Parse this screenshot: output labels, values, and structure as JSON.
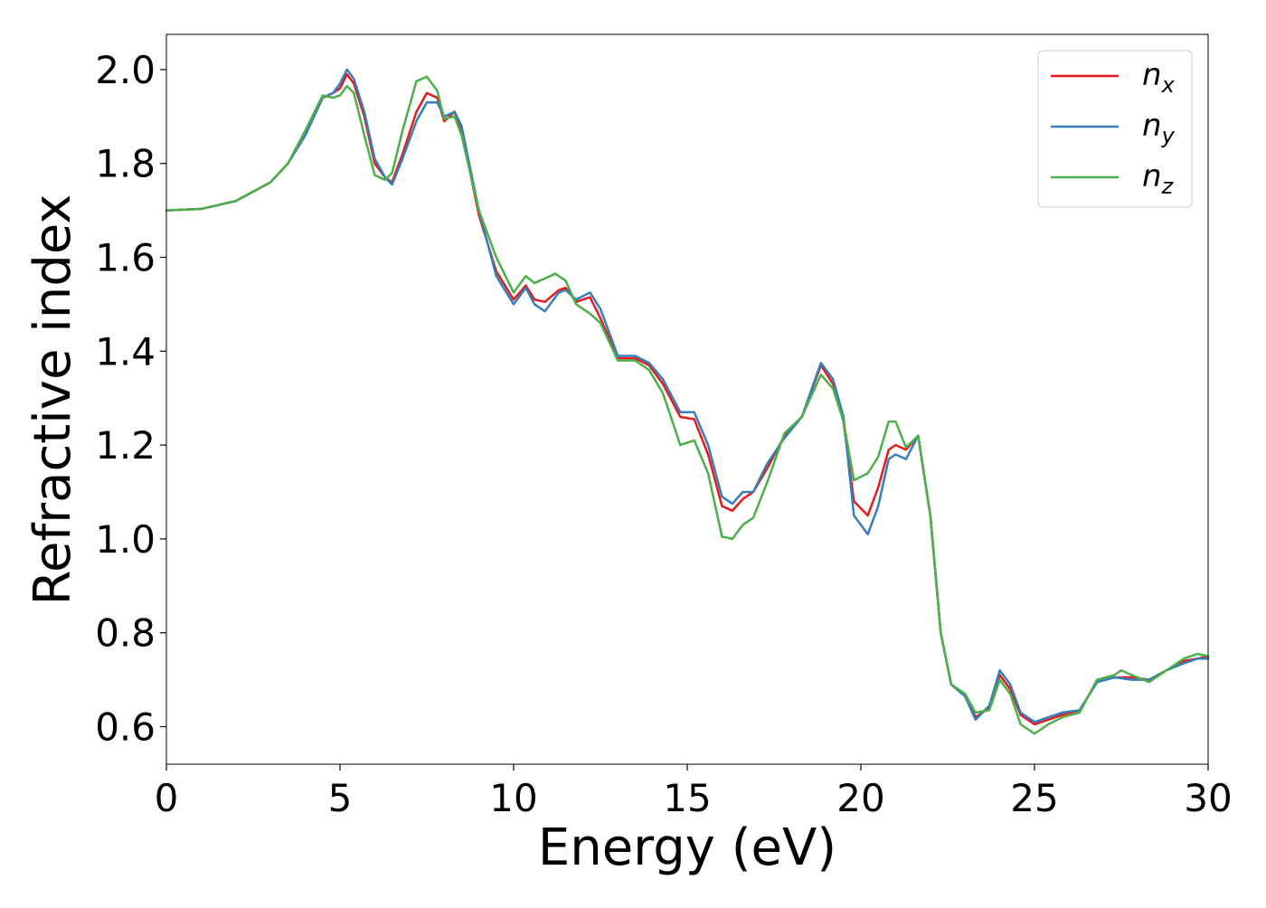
{
  "chart_data": {
    "type": "line",
    "title": "",
    "xlabel": "Energy (eV)",
    "ylabel": "Refractive index",
    "xlim": [
      0,
      30
    ],
    "ylim": [
      0.52,
      2.075
    ],
    "xticks": [
      0,
      5,
      10,
      15,
      20,
      25,
      30
    ],
    "yticks": [
      0.6,
      0.8,
      1.0,
      1.2,
      1.4,
      1.6,
      1.8,
      2.0
    ],
    "xtick_labels": [
      "0",
      "5",
      "10",
      "15",
      "20",
      "25",
      "30"
    ],
    "ytick_labels": [
      "0.6",
      "0.8",
      "1.0",
      "1.2",
      "1.4",
      "1.6",
      "1.8",
      "2.0"
    ],
    "grid": false,
    "legend_position": "top-right",
    "series": [
      {
        "name": "n_x",
        "legend_base": "n",
        "legend_sub": "x",
        "color": "#e41a1c",
        "points": [
          [
            0,
            1.7
          ],
          [
            1,
            1.703
          ],
          [
            2,
            1.72
          ],
          [
            3,
            1.76
          ],
          [
            3.5,
            1.8
          ],
          [
            4,
            1.86
          ],
          [
            4.5,
            1.94
          ],
          [
            4.8,
            1.95
          ],
          [
            5.0,
            1.96
          ],
          [
            5.2,
            1.99
          ],
          [
            5.4,
            1.97
          ],
          [
            5.7,
            1.9
          ],
          [
            6.0,
            1.8
          ],
          [
            6.3,
            1.77
          ],
          [
            6.5,
            1.76
          ],
          [
            6.8,
            1.82
          ],
          [
            7.2,
            1.91
          ],
          [
            7.5,
            1.95
          ],
          [
            7.8,
            1.94
          ],
          [
            8.0,
            1.89
          ],
          [
            8.3,
            1.91
          ],
          [
            8.5,
            1.87
          ],
          [
            9.0,
            1.69
          ],
          [
            9.5,
            1.57
          ],
          [
            10.0,
            1.51
          ],
          [
            10.35,
            1.54
          ],
          [
            10.6,
            1.51
          ],
          [
            10.9,
            1.505
          ],
          [
            11.3,
            1.53
          ],
          [
            11.5,
            1.535
          ],
          [
            11.8,
            1.505
          ],
          [
            12.2,
            1.515
          ],
          [
            12.5,
            1.47
          ],
          [
            13.0,
            1.385
          ],
          [
            13.5,
            1.385
          ],
          [
            13.9,
            1.37
          ],
          [
            14.3,
            1.33
          ],
          [
            14.8,
            1.26
          ],
          [
            15.2,
            1.255
          ],
          [
            15.6,
            1.18
          ],
          [
            16.0,
            1.07
          ],
          [
            16.3,
            1.06
          ],
          [
            16.6,
            1.085
          ],
          [
            16.9,
            1.1
          ],
          [
            17.3,
            1.15
          ],
          [
            17.8,
            1.22
          ],
          [
            18.3,
            1.26
          ],
          [
            18.85,
            1.37
          ],
          [
            19.2,
            1.33
          ],
          [
            19.5,
            1.25
          ],
          [
            19.8,
            1.08
          ],
          [
            20.2,
            1.05
          ],
          [
            20.5,
            1.11
          ],
          [
            20.8,
            1.19
          ],
          [
            21.0,
            1.2
          ],
          [
            21.3,
            1.19
          ],
          [
            21.65,
            1.22
          ],
          [
            22.0,
            1.05
          ],
          [
            22.3,
            0.8
          ],
          [
            22.6,
            0.69
          ],
          [
            23.0,
            0.665
          ],
          [
            23.3,
            0.62
          ],
          [
            23.7,
            0.64
          ],
          [
            24.0,
            0.71
          ],
          [
            24.3,
            0.68
          ],
          [
            24.6,
            0.625
          ],
          [
            25.0,
            0.605
          ],
          [
            25.4,
            0.615
          ],
          [
            25.8,
            0.625
          ],
          [
            26.3,
            0.635
          ],
          [
            26.8,
            0.695
          ],
          [
            27.3,
            0.705
          ],
          [
            27.8,
            0.705
          ],
          [
            28.3,
            0.7
          ],
          [
            28.8,
            0.72
          ],
          [
            29.3,
            0.74
          ],
          [
            29.7,
            0.745
          ],
          [
            30.0,
            0.75
          ]
        ]
      },
      {
        "name": "n_y",
        "legend_base": "n",
        "legend_sub": "y",
        "color": "#377eb8",
        "points": [
          [
            0,
            1.7
          ],
          [
            1,
            1.703
          ],
          [
            2,
            1.72
          ],
          [
            3,
            1.76
          ],
          [
            3.5,
            1.8
          ],
          [
            4,
            1.86
          ],
          [
            4.5,
            1.94
          ],
          [
            4.8,
            1.95
          ],
          [
            5.0,
            1.97
          ],
          [
            5.2,
            2.0
          ],
          [
            5.4,
            1.98
          ],
          [
            5.7,
            1.91
          ],
          [
            6.0,
            1.81
          ],
          [
            6.3,
            1.77
          ],
          [
            6.5,
            1.755
          ],
          [
            6.8,
            1.81
          ],
          [
            7.2,
            1.89
          ],
          [
            7.5,
            1.93
          ],
          [
            7.8,
            1.93
          ],
          [
            8.0,
            1.9
          ],
          [
            8.3,
            1.91
          ],
          [
            8.5,
            1.88
          ],
          [
            9.0,
            1.7
          ],
          [
            9.5,
            1.56
          ],
          [
            10.0,
            1.5
          ],
          [
            10.35,
            1.535
          ],
          [
            10.6,
            1.5
          ],
          [
            10.9,
            1.485
          ],
          [
            11.3,
            1.525
          ],
          [
            11.5,
            1.53
          ],
          [
            11.8,
            1.51
          ],
          [
            12.2,
            1.525
          ],
          [
            12.5,
            1.49
          ],
          [
            13.0,
            1.39
          ],
          [
            13.5,
            1.39
          ],
          [
            13.9,
            1.375
          ],
          [
            14.3,
            1.34
          ],
          [
            14.8,
            1.27
          ],
          [
            15.2,
            1.27
          ],
          [
            15.6,
            1.2
          ],
          [
            16.0,
            1.09
          ],
          [
            16.3,
            1.075
          ],
          [
            16.6,
            1.1
          ],
          [
            16.9,
            1.1
          ],
          [
            17.3,
            1.16
          ],
          [
            17.8,
            1.215
          ],
          [
            18.3,
            1.26
          ],
          [
            18.85,
            1.375
          ],
          [
            19.2,
            1.34
          ],
          [
            19.5,
            1.26
          ],
          [
            19.8,
            1.05
          ],
          [
            20.2,
            1.01
          ],
          [
            20.5,
            1.07
          ],
          [
            20.8,
            1.17
          ],
          [
            21.0,
            1.18
          ],
          [
            21.3,
            1.17
          ],
          [
            21.65,
            1.22
          ],
          [
            22.0,
            1.05
          ],
          [
            22.3,
            0.8
          ],
          [
            22.6,
            0.69
          ],
          [
            23.0,
            0.665
          ],
          [
            23.3,
            0.615
          ],
          [
            23.7,
            0.645
          ],
          [
            24.0,
            0.72
          ],
          [
            24.3,
            0.69
          ],
          [
            24.6,
            0.63
          ],
          [
            25.0,
            0.61
          ],
          [
            25.4,
            0.62
          ],
          [
            25.8,
            0.63
          ],
          [
            26.3,
            0.635
          ],
          [
            26.8,
            0.695
          ],
          [
            27.3,
            0.705
          ],
          [
            27.8,
            0.7
          ],
          [
            28.3,
            0.7
          ],
          [
            28.8,
            0.72
          ],
          [
            29.3,
            0.735
          ],
          [
            29.7,
            0.745
          ],
          [
            30.0,
            0.745
          ]
        ]
      },
      {
        "name": "n_z",
        "legend_base": "n",
        "legend_sub": "z",
        "color": "#4daf4a",
        "points": [
          [
            0,
            1.7
          ],
          [
            1,
            1.703
          ],
          [
            2,
            1.72
          ],
          [
            3,
            1.76
          ],
          [
            3.5,
            1.8
          ],
          [
            4,
            1.87
          ],
          [
            4.5,
            1.945
          ],
          [
            4.8,
            1.94
          ],
          [
            5.0,
            1.945
          ],
          [
            5.2,
            1.965
          ],
          [
            5.4,
            1.95
          ],
          [
            5.7,
            1.86
          ],
          [
            6.0,
            1.775
          ],
          [
            6.3,
            1.765
          ],
          [
            6.5,
            1.78
          ],
          [
            6.8,
            1.87
          ],
          [
            7.2,
            1.975
          ],
          [
            7.5,
            1.985
          ],
          [
            7.8,
            1.955
          ],
          [
            8.0,
            1.895
          ],
          [
            8.3,
            1.9
          ],
          [
            8.5,
            1.86
          ],
          [
            9.0,
            1.7
          ],
          [
            9.5,
            1.6
          ],
          [
            10.0,
            1.525
          ],
          [
            10.35,
            1.56
          ],
          [
            10.6,
            1.545
          ],
          [
            10.9,
            1.555
          ],
          [
            11.2,
            1.565
          ],
          [
            11.5,
            1.55
          ],
          [
            11.8,
            1.5
          ],
          [
            12.2,
            1.48
          ],
          [
            12.5,
            1.46
          ],
          [
            13.0,
            1.38
          ],
          [
            13.5,
            1.38
          ],
          [
            13.9,
            1.36
          ],
          [
            14.3,
            1.31
          ],
          [
            14.8,
            1.2
          ],
          [
            15.2,
            1.21
          ],
          [
            15.6,
            1.14
          ],
          [
            16.0,
            1.005
          ],
          [
            16.3,
            1.0
          ],
          [
            16.6,
            1.03
          ],
          [
            16.9,
            1.045
          ],
          [
            17.3,
            1.12
          ],
          [
            17.8,
            1.225
          ],
          [
            18.3,
            1.26
          ],
          [
            18.85,
            1.35
          ],
          [
            19.2,
            1.32
          ],
          [
            19.5,
            1.25
          ],
          [
            19.8,
            1.125
          ],
          [
            20.2,
            1.14
          ],
          [
            20.5,
            1.175
          ],
          [
            20.8,
            1.25
          ],
          [
            21.0,
            1.25
          ],
          [
            21.3,
            1.195
          ],
          [
            21.65,
            1.22
          ],
          [
            22.0,
            1.05
          ],
          [
            22.3,
            0.8
          ],
          [
            22.6,
            0.69
          ],
          [
            23.0,
            0.67
          ],
          [
            23.3,
            0.63
          ],
          [
            23.7,
            0.635
          ],
          [
            24.0,
            0.7
          ],
          [
            24.3,
            0.67
          ],
          [
            24.6,
            0.605
          ],
          [
            25.0,
            0.585
          ],
          [
            25.4,
            0.605
          ],
          [
            25.8,
            0.62
          ],
          [
            26.3,
            0.63
          ],
          [
            26.8,
            0.7
          ],
          [
            27.3,
            0.71
          ],
          [
            27.5,
            0.72
          ],
          [
            27.8,
            0.71
          ],
          [
            28.3,
            0.695
          ],
          [
            28.8,
            0.72
          ],
          [
            29.3,
            0.745
          ],
          [
            29.7,
            0.755
          ],
          [
            30.0,
            0.75
          ]
        ]
      }
    ]
  }
}
